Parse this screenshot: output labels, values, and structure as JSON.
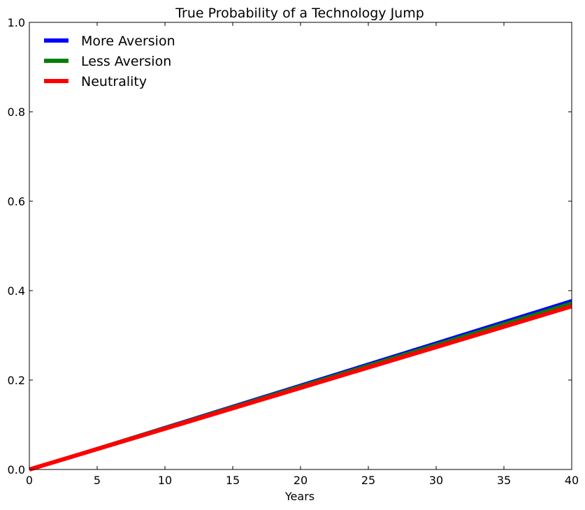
{
  "chart_data": {
    "type": "line",
    "title": "True Probability of a Technology Jump",
    "xlabel": "Years",
    "ylabel": "",
    "xlim": [
      0,
      40
    ],
    "ylim": [
      0,
      1.0
    ],
    "xticks": [
      0,
      5,
      10,
      15,
      20,
      25,
      30,
      35,
      40
    ],
    "yticks": [
      0.0,
      0.2,
      0.4,
      0.6,
      0.8,
      1.0
    ],
    "xtick_labels": [
      "0",
      "5",
      "10",
      "15",
      "20",
      "25",
      "30",
      "35",
      "40"
    ],
    "ytick_labels": [
      "0.0",
      "0.2",
      "0.4",
      "0.6",
      "0.8",
      "1.0"
    ],
    "grid": false,
    "legend": "top-left",
    "series": [
      {
        "name": "More Aversion",
        "color": "#0000ff",
        "x": [
          0,
          40
        ],
        "y": [
          0.0,
          0.378
        ]
      },
      {
        "name": "Less Aversion",
        "color": "#008000",
        "x": [
          0,
          40
        ],
        "y": [
          0.0,
          0.372
        ]
      },
      {
        "name": "Neutrality",
        "color": "#ff0000",
        "x": [
          0,
          40
        ],
        "y": [
          0.0,
          0.365
        ]
      }
    ]
  }
}
